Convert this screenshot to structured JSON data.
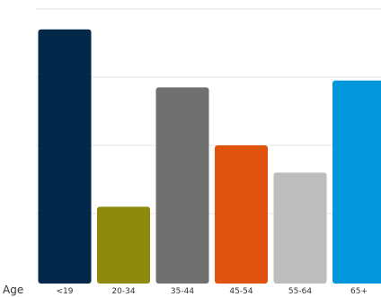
{
  "chart_data": {
    "type": "bar",
    "title": "",
    "xlabel": "Age",
    "ylabel": "",
    "categories": [
      "<19",
      "20-34",
      "35-44",
      "45-54",
      "55-64",
      "65+"
    ],
    "values": [
      37.0,
      11.0,
      28.5,
      20.0,
      16.0,
      29.5
    ],
    "ylim": [
      0,
      40
    ],
    "grid": true,
    "colors": [
      "#03284a",
      "#8d8a0e",
      "#6f706f",
      "#e0530e",
      "#bdbdbd",
      "#0296dd"
    ]
  }
}
